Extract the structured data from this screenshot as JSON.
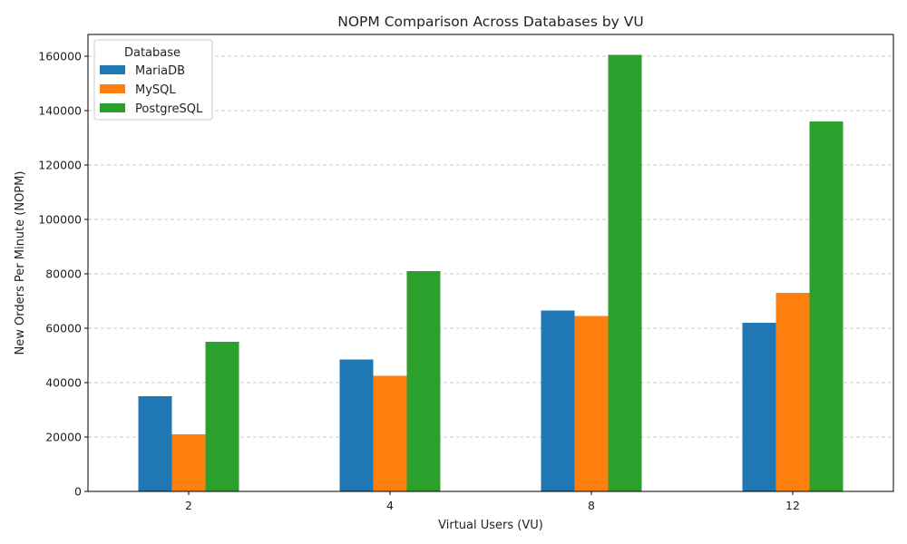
{
  "chart_data": {
    "type": "bar",
    "title": "NOPM Comparison Across Databases by VU",
    "xlabel": "Virtual Users (VU)",
    "ylabel": "New Orders Per Minute (NOPM)",
    "categories": [
      "2",
      "4",
      "8",
      "12"
    ],
    "ylim": [
      0,
      168000
    ],
    "yticks": [
      0,
      20000,
      40000,
      60000,
      80000,
      100000,
      120000,
      140000,
      160000
    ],
    "grid": "horizontal dashed",
    "legend": {
      "title": "Database",
      "placement": "top-left"
    },
    "series": [
      {
        "name": "MariaDB",
        "color": "#1f77b4",
        "values": [
          35000,
          48500,
          66500,
          62000
        ]
      },
      {
        "name": "MySQL",
        "color": "#ff7f0e",
        "values": [
          21000,
          42500,
          64500,
          73000
        ]
      },
      {
        "name": "PostgreSQL",
        "color": "#2ca02c",
        "values": [
          55000,
          81000,
          160500,
          136000
        ]
      }
    ]
  }
}
